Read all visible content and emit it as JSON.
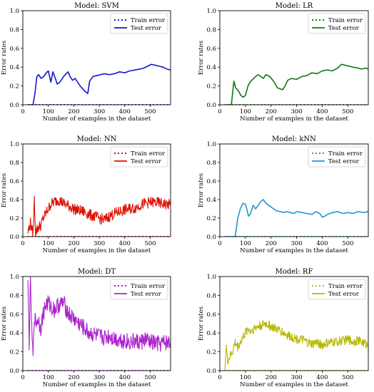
{
  "chart_data": [
    {
      "type": "line",
      "title": "Model: SVM",
      "xlabel": "Number of examples in the dataset",
      "ylabel": "Error rates",
      "xlim": [
        0,
        580
      ],
      "ylim": [
        0,
        1.0
      ],
      "xticks": [
        0,
        100,
        200,
        300,
        400,
        500
      ],
      "yticks": [
        0.0,
        0.2,
        0.4,
        0.6,
        0.8,
        1.0
      ],
      "legend": "top-right",
      "color": "#1515cc",
      "series": [
        {
          "name": "Train error",
          "style": "dotted",
          "x": [
            20,
            580
          ],
          "y": [
            0,
            0
          ]
        },
        {
          "name": "Test error",
          "style": "solid",
          "x": [
            20,
            40,
            48,
            55,
            62,
            72,
            82,
            92,
            100,
            110,
            118,
            125,
            135,
            145,
            160,
            170,
            178,
            185,
            195,
            205,
            215,
            225,
            235,
            245,
            250,
            255,
            262,
            275,
            290,
            305,
            320,
            340,
            360,
            380,
            400,
            420,
            440,
            460,
            475,
            490,
            505,
            520,
            535,
            550,
            565,
            580
          ],
          "y": [
            0,
            0,
            0.13,
            0.3,
            0.32,
            0.28,
            0.3,
            0.34,
            0.36,
            0.24,
            0.35,
            0.3,
            0.22,
            0.24,
            0.3,
            0.33,
            0.35,
            0.3,
            0.26,
            0.28,
            0.24,
            0.2,
            0.17,
            0.14,
            0.13,
            0.12,
            0.25,
            0.3,
            0.31,
            0.32,
            0.33,
            0.32,
            0.33,
            0.35,
            0.34,
            0.36,
            0.37,
            0.38,
            0.39,
            0.41,
            0.43,
            0.42,
            0.41,
            0.4,
            0.38,
            0.37
          ]
        }
      ]
    },
    {
      "type": "line",
      "title": "Model: LR",
      "xlabel": "Number of examples in the dataset",
      "ylabel": "Error rates",
      "xlim": [
        0,
        580
      ],
      "ylim": [
        0,
        1.0
      ],
      "xticks": [
        0,
        100,
        200,
        300,
        400,
        500
      ],
      "yticks": [
        0.0,
        0.2,
        0.4,
        0.6,
        0.8,
        1.0
      ],
      "legend": "top-right",
      "color": "#117711",
      "series": [
        {
          "name": "Train error",
          "style": "dotted",
          "x": [
            20,
            580
          ],
          "y": [
            0,
            0
          ]
        },
        {
          "name": "Test error",
          "style": "solid",
          "x": [
            20,
            45,
            55,
            62,
            72,
            82,
            92,
            100,
            110,
            118,
            125,
            132,
            140,
            150,
            160,
            170,
            180,
            195,
            210,
            225,
            235,
            245,
            255,
            265,
            280,
            300,
            320,
            340,
            360,
            380,
            400,
            420,
            440,
            460,
            475,
            490,
            505,
            520,
            540,
            555,
            570,
            580
          ],
          "y": [
            0,
            0,
            0.25,
            0.18,
            0.15,
            0.1,
            0.08,
            0.1,
            0.2,
            0.24,
            0.26,
            0.28,
            0.3,
            0.32,
            0.3,
            0.28,
            0.32,
            0.3,
            0.25,
            0.18,
            0.17,
            0.16,
            0.2,
            0.26,
            0.28,
            0.27,
            0.3,
            0.31,
            0.34,
            0.33,
            0.36,
            0.37,
            0.36,
            0.39,
            0.43,
            0.42,
            0.41,
            0.4,
            0.39,
            0.38,
            0.39,
            0.38
          ]
        }
      ]
    },
    {
      "type": "line",
      "title": "Model: NN",
      "xlabel": "Number of examples in the dataset",
      "ylabel": "Error rates",
      "xlim": [
        0,
        580
      ],
      "ylim": [
        0,
        1.0
      ],
      "xticks": [
        0,
        100,
        200,
        300,
        400,
        500
      ],
      "yticks": [
        0.0,
        0.2,
        0.4,
        0.6,
        0.8,
        1.0
      ],
      "legend": "top-right",
      "color": "#dd1100",
      "series": [
        {
          "name": "Train error",
          "style": "dotted",
          "x": [
            20,
            580
          ],
          "y": [
            0,
            0
          ]
        },
        {
          "name": "Test error",
          "style": "solid",
          "noisy": true,
          "noise_amp": 0.06,
          "x": [
            20,
            30,
            40,
            45,
            50,
            60,
            70,
            80,
            90,
            100,
            110,
            125,
            140,
            160,
            180,
            200,
            220,
            240,
            260,
            280,
            300,
            320,
            340,
            360,
            380,
            400,
            420,
            440,
            460,
            480,
            500,
            520,
            540,
            560,
            580
          ],
          "y": [
            0.05,
            0.15,
            0.02,
            0.4,
            0.05,
            0.1,
            0.12,
            0.2,
            0.25,
            0.3,
            0.35,
            0.38,
            0.4,
            0.36,
            0.33,
            0.3,
            0.28,
            0.27,
            0.24,
            0.22,
            0.2,
            0.18,
            0.22,
            0.25,
            0.27,
            0.29,
            0.3,
            0.31,
            0.34,
            0.36,
            0.37,
            0.37,
            0.36,
            0.35,
            0.34
          ]
        }
      ]
    },
    {
      "type": "line",
      "title": "Model: kNN",
      "xlabel": "Number of examples in the dataset",
      "ylabel": "Error rates",
      "xlim": [
        0,
        580
      ],
      "ylim": [
        0,
        1.0
      ],
      "xticks": [
        0,
        100,
        200,
        300,
        400,
        500
      ],
      "yticks": [
        0.0,
        0.2,
        0.4,
        0.6,
        0.8,
        1.0
      ],
      "legend": "top-right",
      "color": "#2299cc",
      "series": [
        {
          "name": "Train error",
          "style": "dotted",
          "x": [
            20,
            580
          ],
          "y": [
            0,
            0
          ]
        },
        {
          "name": "Test error",
          "style": "solid",
          "x": [
            20,
            60,
            70,
            80,
            90,
            100,
            105,
            112,
            120,
            130,
            140,
            150,
            160,
            170,
            180,
            190,
            200,
            210,
            220,
            235,
            250,
            260,
            275,
            290,
            300,
            320,
            340,
            360,
            375,
            390,
            400,
            410,
            420,
            440,
            460,
            480,
            500,
            520,
            540,
            560,
            580
          ],
          "y": [
            0,
            0,
            0.2,
            0.3,
            0.36,
            0.35,
            0.3,
            0.22,
            0.25,
            0.34,
            0.3,
            0.34,
            0.38,
            0.4,
            0.36,
            0.34,
            0.32,
            0.3,
            0.28,
            0.27,
            0.26,
            0.27,
            0.26,
            0.25,
            0.27,
            0.26,
            0.25,
            0.24,
            0.27,
            0.25,
            0.21,
            0.22,
            0.24,
            0.26,
            0.27,
            0.25,
            0.26,
            0.25,
            0.27,
            0.26,
            0.27
          ]
        }
      ]
    },
    {
      "type": "line",
      "title": "Model: DT",
      "xlabel": "Number of examples in the dataset",
      "ylabel": "Error rates",
      "xlim": [
        0,
        580
      ],
      "ylim": [
        0,
        1.0
      ],
      "xticks": [
        0,
        100,
        200,
        300,
        400,
        500
      ],
      "yticks": [
        0.0,
        0.2,
        0.4,
        0.6,
        0.8,
        1.0
      ],
      "legend": "top-right",
      "color": "#aa22cc",
      "series": [
        {
          "name": "Train error",
          "style": "dotted",
          "x": [
            20,
            580
          ],
          "y": [
            0,
            0
          ]
        },
        {
          "name": "Test error",
          "style": "solid",
          "noisy": true,
          "noise_amp": 0.09,
          "x": [
            20,
            25,
            30,
            35,
            40,
            45,
            50,
            60,
            70,
            80,
            90,
            100,
            110,
            125,
            140,
            160,
            180,
            200,
            220,
            240,
            260,
            280,
            300,
            320,
            340,
            360,
            380,
            400,
            420,
            440,
            460,
            480,
            500,
            520,
            540,
            560,
            580
          ],
          "y": [
            0.9,
            0.3,
            1.0,
            0.4,
            0.15,
            0.6,
            0.5,
            0.55,
            0.45,
            0.6,
            0.7,
            0.72,
            0.68,
            0.65,
            0.7,
            0.72,
            0.6,
            0.55,
            0.5,
            0.45,
            0.4,
            0.38,
            0.36,
            0.35,
            0.37,
            0.34,
            0.33,
            0.32,
            0.3,
            0.31,
            0.3,
            0.33,
            0.3,
            0.29,
            0.28,
            0.3,
            0.29
          ]
        }
      ]
    },
    {
      "type": "line",
      "title": "Model: RF",
      "xlabel": "Number of examples in the dataset",
      "ylabel": "Error rates",
      "xlim": [
        0,
        580
      ],
      "ylim": [
        0,
        1.0
      ],
      "xticks": [
        0,
        100,
        200,
        300,
        400,
        500
      ],
      "yticks": [
        0.0,
        0.2,
        0.4,
        0.6,
        0.8,
        1.0
      ],
      "legend": "top-right",
      "color": "#b8b800",
      "series": [
        {
          "name": "Train error",
          "style": "dotted",
          "x": [
            20,
            580
          ],
          "y": [
            0,
            0
          ]
        },
        {
          "name": "Test error",
          "style": "solid",
          "noisy": true,
          "noise_amp": 0.05,
          "x": [
            20,
            25,
            30,
            40,
            50,
            60,
            70,
            80,
            90,
            100,
            110,
            120,
            140,
            160,
            180,
            200,
            220,
            240,
            260,
            280,
            300,
            320,
            340,
            360,
            380,
            400,
            420,
            440,
            460,
            480,
            500,
            520,
            540,
            560,
            580
          ],
          "y": [
            0.05,
            0.25,
            0.1,
            0.15,
            0.2,
            0.3,
            0.25,
            0.3,
            0.35,
            0.4,
            0.45,
            0.42,
            0.46,
            0.48,
            0.5,
            0.47,
            0.44,
            0.42,
            0.38,
            0.36,
            0.34,
            0.33,
            0.3,
            0.28,
            0.3,
            0.27,
            0.29,
            0.3,
            0.31,
            0.32,
            0.33,
            0.31,
            0.32,
            0.3,
            0.27
          ]
        }
      ]
    }
  ]
}
